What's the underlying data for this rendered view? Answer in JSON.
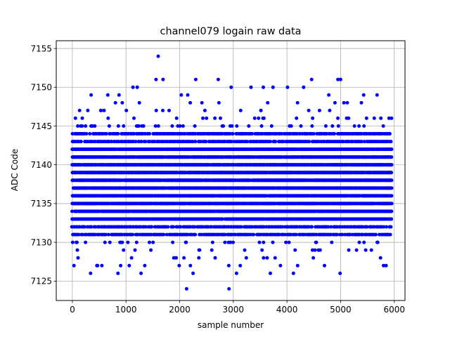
{
  "chart_data": {
    "type": "scatter",
    "title": "channel079 logain raw data",
    "xlabel": "sample number",
    "ylabel": "ADC Code",
    "xlim": [
      -300,
      6200
    ],
    "ylim": [
      7122.5,
      7156
    ],
    "grid": true,
    "xticks": [
      0,
      1000,
      2000,
      3000,
      4000,
      5000,
      6000
    ],
    "yticks": [
      7125,
      7130,
      7135,
      7140,
      7145,
      7150,
      7155
    ],
    "series": [
      {
        "color": "#0000ff",
        "marker": "circle",
        "x_range": [
          0,
          5950
        ],
        "dense_band": [
          7131,
          7144
        ],
        "sparse_band": [
          7127,
          7148
        ],
        "points": [
          {
            "x": 1600,
            "y": 7154
          },
          {
            "x": 1560,
            "y": 7151
          },
          {
            "x": 1690,
            "y": 7151
          },
          {
            "x": 2300,
            "y": 7151
          },
          {
            "x": 2720,
            "y": 7151
          },
          {
            "x": 4460,
            "y": 7151
          },
          {
            "x": 4950,
            "y": 7151
          },
          {
            "x": 5000,
            "y": 7151
          },
          {
            "x": 1130,
            "y": 7150
          },
          {
            "x": 1210,
            "y": 7150
          },
          {
            "x": 2960,
            "y": 7150
          },
          {
            "x": 3330,
            "y": 7150
          },
          {
            "x": 3560,
            "y": 7150
          },
          {
            "x": 3740,
            "y": 7150
          },
          {
            "x": 4010,
            "y": 7150
          },
          {
            "x": 4310,
            "y": 7150
          },
          {
            "x": 350,
            "y": 7149
          },
          {
            "x": 660,
            "y": 7149
          },
          {
            "x": 870,
            "y": 7149
          },
          {
            "x": 2030,
            "y": 7149
          },
          {
            "x": 2150,
            "y": 7149
          },
          {
            "x": 4780,
            "y": 7149
          },
          {
            "x": 5430,
            "y": 7149
          },
          {
            "x": 5680,
            "y": 7149
          },
          {
            "x": 2130,
            "y": 7124
          },
          {
            "x": 2920,
            "y": 7124
          },
          {
            "x": 340,
            "y": 7126
          },
          {
            "x": 850,
            "y": 7126
          },
          {
            "x": 1280,
            "y": 7126
          },
          {
            "x": 2250,
            "y": 7126
          },
          {
            "x": 3060,
            "y": 7126
          },
          {
            "x": 3690,
            "y": 7126
          },
          {
            "x": 4120,
            "y": 7126
          },
          {
            "x": 4990,
            "y": 7126
          },
          {
            "x": 30,
            "y": 7127
          },
          {
            "x": 1060,
            "y": 7127
          },
          {
            "x": 2200,
            "y": 7127
          },
          {
            "x": 3130,
            "y": 7127
          },
          {
            "x": 4700,
            "y": 7127
          },
          {
            "x": 5800,
            "y": 7127
          }
        ]
      }
    ]
  }
}
